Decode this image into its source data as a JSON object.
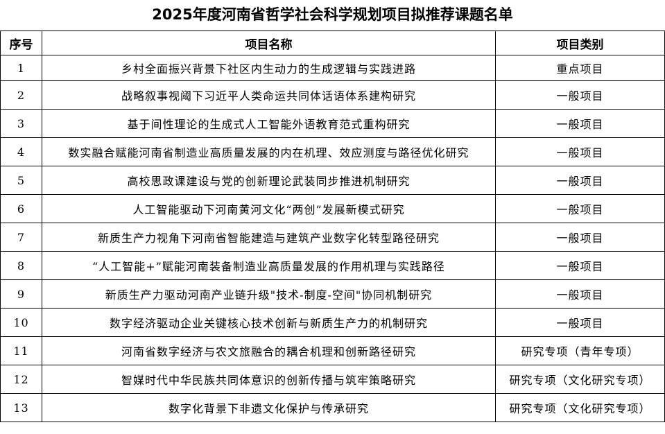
{
  "title": "2025年度河南省哲学社会科学规划项目拟推荐课题名单",
  "headers": [
    "序号",
    "项目名称",
    "项目类别"
  ],
  "rows": [
    {
      "no": "1",
      "name": "乡村全面振兴背景下社区内生动力的生成逻辑与实践进路",
      "category": "重点项目"
    },
    {
      "no": "2",
      "name": "战略叙事视阈下习近平人类命运共同体话语体系建构研究",
      "category": "一般项目"
    },
    {
      "no": "3",
      "name": "基于间性理论的生成式人工智能外语教育范式重构研究",
      "category": "一般项目"
    },
    {
      "no": "4",
      "name": "数实融合赋能河南省制造业高质量发展的内在机理、效应测度与路径优化研究",
      "category": "一般项目"
    },
    {
      "no": "5",
      "name": "高校思政课建设与党的创新理论武装同步推进机制研究",
      "category": "一般项目"
    },
    {
      "no": "6",
      "name": "人工智能驱动下河南黄河文化“两创”发展新模式研究",
      "category": "一般项目"
    },
    {
      "no": "7",
      "name": "新质生产力视角下河南省智能建造与建筑产业数字化转型路径研究",
      "category": "一般项目"
    },
    {
      "no": "8",
      "name": "“人工智能+”赋能河南装备制造业高质量发展的作用机理与实践路径",
      "category": "一般项目"
    },
    {
      "no": "9",
      "name": "新质生产力驱动河南产业链升级\"技术-制度-空间\"协同机制研究",
      "category": "一般项目"
    },
    {
      "no": "10",
      "name": "数字经济驱动企业关键核心技术创新与新质生产力的机制研究",
      "category": "一般项目"
    },
    {
      "no": "11",
      "name": "河南省数字经济与农文旅融合的耦合机理和创新路径研究",
      "category": "研究专项（青年专项）"
    },
    {
      "no": "12",
      "name": "智媒时代中华民族共同体意识的创新传播与筑牢策略研究",
      "category": "研究专项（文化研究专项）"
    },
    {
      "no": "13",
      "name": "数字化背景下非遗文化保护与传承研究",
      "category": "研究专项（文化研究专项）"
    }
  ]
}
